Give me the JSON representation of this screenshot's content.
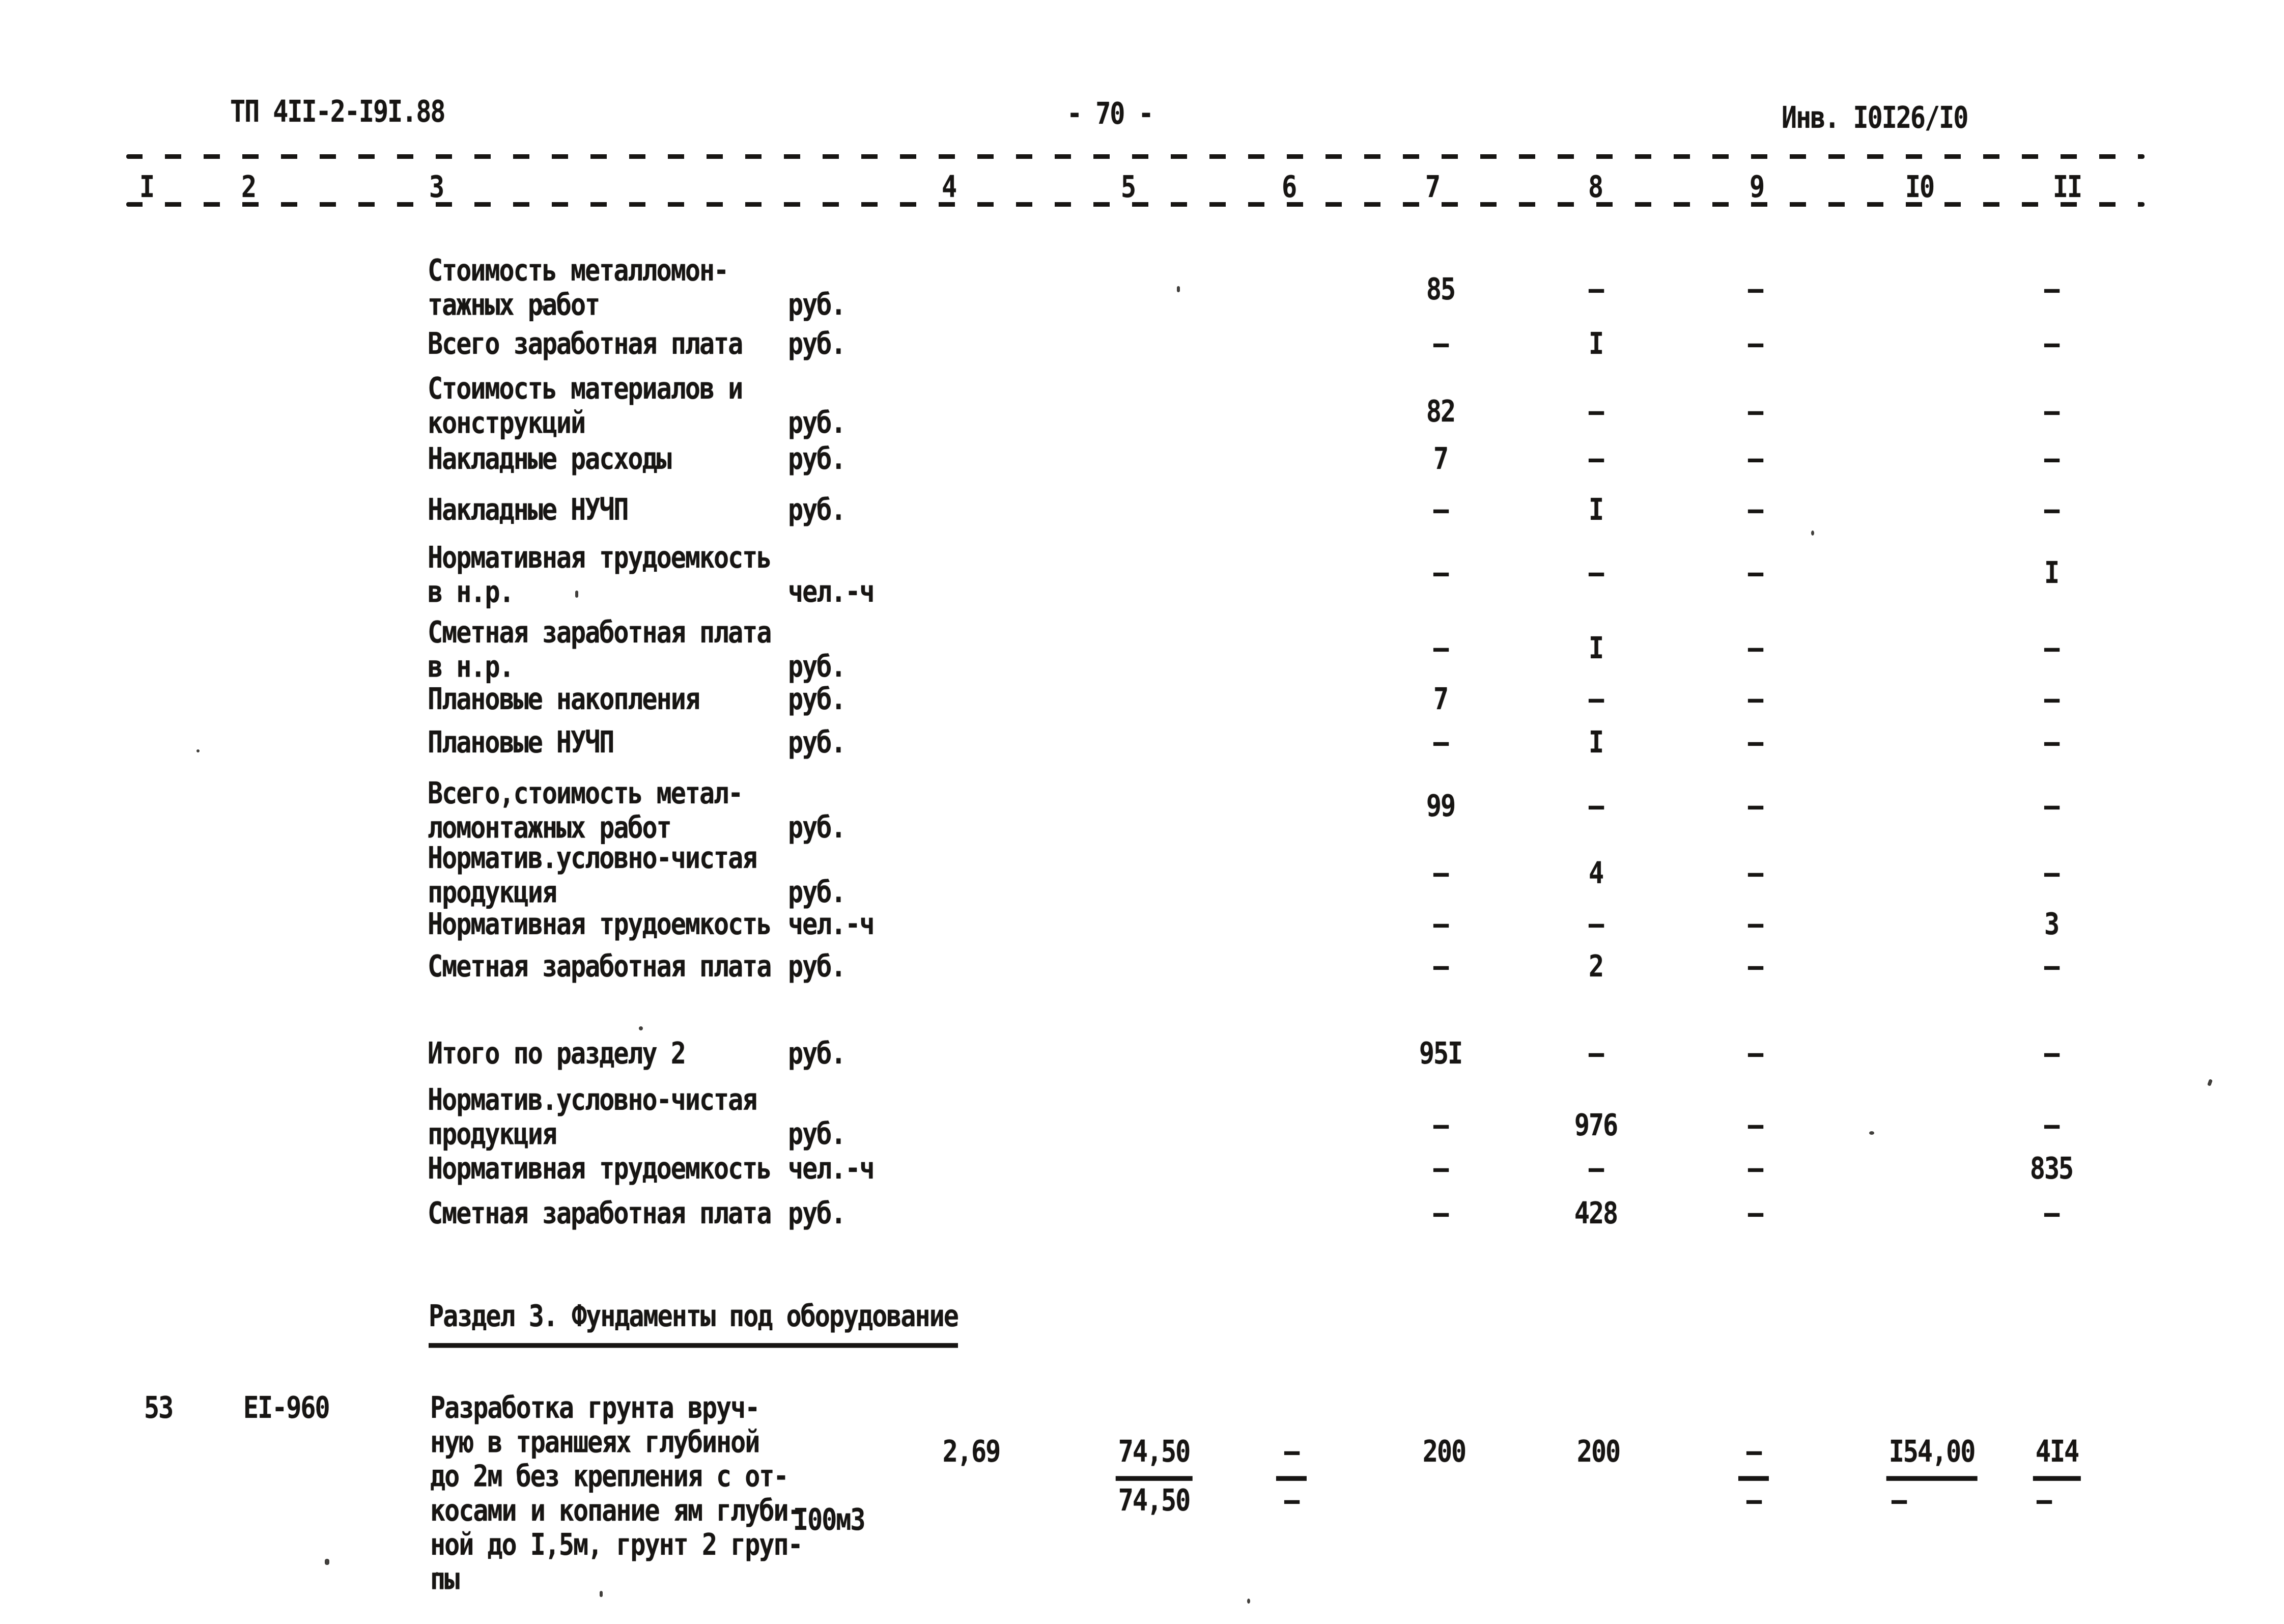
{
  "page": {
    "doc_code": "ТП 4II-2-I9I.88",
    "page_number": "- 70 -",
    "inventory_number": "Инв. I0I26/I0"
  },
  "ruler": {
    "columns": [
      "I",
      "2",
      "3",
      "4",
      "5",
      "6",
      "7",
      "8",
      "9",
      "I0",
      "II"
    ]
  },
  "section2": {
    "rows": [
      {
        "label_lines": [
          "Стоимость металломон-",
          "тажных работ"
        ],
        "unit": "руб.",
        "values": {
          "c7": "85",
          "c8": "–",
          "c9": "–",
          "c11": "–"
        }
      },
      {
        "label_lines": [
          "Всего заработная плата"
        ],
        "unit": "руб.",
        "values": {
          "c7": "–",
          "c8": "I",
          "c9": "–",
          "c11": "–"
        }
      },
      {
        "label_lines": [
          "Стоимость материалов и",
          "конструкций"
        ],
        "unit": "руб.",
        "values": {
          "c7": "82",
          "c8": "–",
          "c9": "–",
          "c11": "–"
        }
      },
      {
        "label_lines": [
          "Накладные расходы"
        ],
        "unit": "руб.",
        "values": {
          "c7": "7",
          "c8": "–",
          "c9": "–",
          "c11": "–"
        }
      },
      {
        "label_lines": [
          "Накладные НУЧП"
        ],
        "unit": "руб.",
        "values": {
          "c7": "–",
          "c8": "I",
          "c9": "–",
          "c11": "–"
        }
      },
      {
        "label_lines": [
          "Нормативная трудоемкость",
          "в н.р."
        ],
        "unit": "чел.-ч",
        "values": {
          "c7": "–",
          "c8": "–",
          "c9": "–",
          "c11": "I"
        }
      },
      {
        "label_lines": [
          "Сметная заработная плата",
          "в н.р."
        ],
        "unit": "руб.",
        "values": {
          "c7": "–",
          "c8": "I",
          "c9": "–",
          "c11": "–"
        }
      },
      {
        "label_lines": [
          "Плановые накопления"
        ],
        "unit": "руб.",
        "values": {
          "c7": "7",
          "c8": "–",
          "c9": "–",
          "c11": "–"
        }
      },
      {
        "label_lines": [
          "Плановые НУЧП"
        ],
        "unit": "руб.",
        "values": {
          "c7": "–",
          "c8": "I",
          "c9": "–",
          "c11": "–"
        }
      },
      {
        "label_lines": [
          "Всего,стоимость метал-",
          "ломонтажных работ"
        ],
        "unit": "руб.",
        "values": {
          "c7": "99",
          "c8": "–",
          "c9": "–",
          "c11": "–"
        }
      },
      {
        "label_lines": [
          "Норматив.условно-чистая",
          "продукция"
        ],
        "unit": "руб.",
        "values": {
          "c7": "–",
          "c8": "4",
          "c9": "–",
          "c11": "–"
        }
      },
      {
        "label_lines": [
          "Нормативная трудоемкость"
        ],
        "unit": "чел.-ч",
        "values": {
          "c7": "–",
          "c8": "–",
          "c9": "–",
          "c11": "3"
        }
      },
      {
        "label_lines": [
          "Сметная заработная плата"
        ],
        "unit": "руб.",
        "values": {
          "c7": "–",
          "c8": "2",
          "c9": "–",
          "c11": "–"
        }
      },
      {
        "label_lines": [
          "Итого по разделу 2"
        ],
        "unit": "руб.",
        "values": {
          "c7": "95I",
          "c8": "–",
          "c9": "–",
          "c11": "–"
        }
      },
      {
        "label_lines": [
          "Норматив.условно-чистая",
          "продукция"
        ],
        "unit": "руб.",
        "values": {
          "c7": "–",
          "c8": "976",
          "c9": "–",
          "c11": "–"
        }
      },
      {
        "label_lines": [
          "Нормативная трудоемкость"
        ],
        "unit": "чел.-ч",
        "values": {
          "c7": "–",
          "c8": "–",
          "c9": "–",
          "c11": "835"
        }
      },
      {
        "label_lines": [
          "Сметная заработная плата"
        ],
        "unit": "руб.",
        "values": {
          "c7": "–",
          "c8": "428",
          "c9": "–",
          "c11": "–"
        }
      }
    ]
  },
  "section3": {
    "title": "Раздел 3. Фундаменты под оборудование",
    "item": {
      "number": "53",
      "code": "ЕI-960",
      "description_lines": [
        "Разработка грунта вруч-",
        "ную в траншеях глубиной",
        "до 2м без крепления с от-",
        "косами и копание ям глуби-",
        "ной до I,5м, грунт 2 груп-",
        "пы"
      ],
      "unit": "I00м3",
      "values_line1": {
        "c4": "2,69",
        "c5": "74,50",
        "c6": "–",
        "c7": "200",
        "c8": "200",
        "c9": "–",
        "c10": "I54,00",
        "c11": "4I4"
      },
      "values_line2": {
        "c5": "74,50",
        "c6": "–",
        "c9": "–",
        "c10": "–",
        "c11": "–"
      },
      "underlined_line1": [
        "c5",
        "c6",
        "c9",
        "c10",
        "c11"
      ]
    }
  }
}
